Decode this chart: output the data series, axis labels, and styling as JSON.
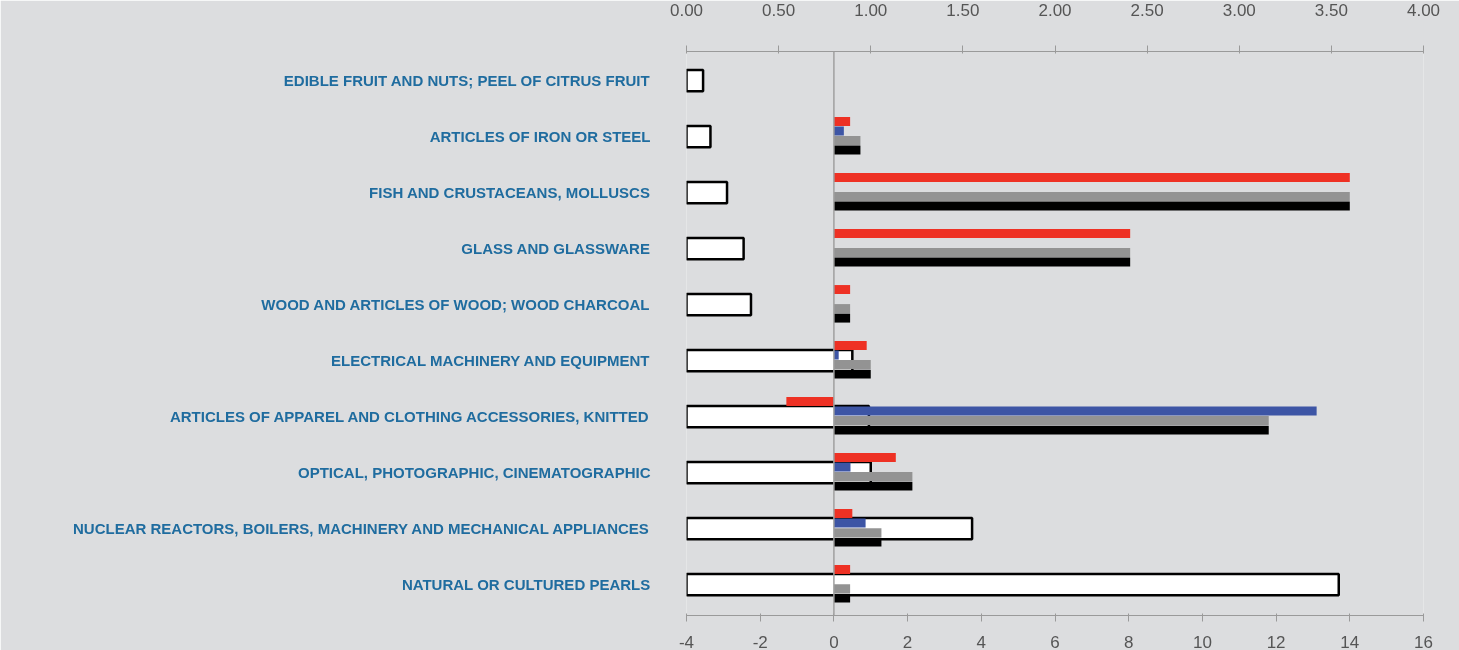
{
  "chart_data": {
    "type": "bar",
    "orientation": "horizontal",
    "categories": [
      "EDIBLE FRUIT AND NUTS; PEEL OF CITRUS FRUIT",
      "ARTICLES OF IRON OR STEEL",
      "FISH AND CRUSTACEANS, MOLLUSCS",
      "GLASS AND GLASSWARE",
      "WOOD AND ARTICLES OF WOOD; WOOD CHARCOAL",
      "ELECTRICAL MACHINERY AND EQUIPMENT",
      "ARTICLES OF APPAREL AND CLOTHING ACCESSORIES, KNITTED",
      "OPTICAL, PHOTOGRAPHIC, CINEMATOGRAPHIC",
      "NUCLEAR REACTORS, BOILERS, MACHINERY AND MECHANICAL APPLIANCES",
      "NATURAL OR CULTURED PEARLS"
    ],
    "series": [
      {
        "color": "#ffffff",
        "axis": "x2",
        "values": [
          0.09,
          0.13,
          0.22,
          0.31,
          0.35,
          0.9,
          0.99,
          1.0,
          1.55,
          3.54
        ]
      },
      {
        "color": "#ee3124",
        "values": [
          null,
          0.44,
          14.0,
          8.04,
          0.44,
          0.89,
          -1.29,
          1.68,
          0.5,
          0.44
        ]
      },
      {
        "color": "#3d55a5",
        "values": [
          null,
          0.27,
          null,
          null,
          null,
          0.13,
          13.1,
          0.45,
          0.86,
          null
        ]
      },
      {
        "color": "#939393",
        "values": [
          null,
          0.72,
          14.0,
          8.04,
          0.44,
          1.0,
          11.8,
          2.13,
          1.29,
          0.44
        ]
      },
      {
        "color": "#000000",
        "values": [
          null,
          0.72,
          14.0,
          8.04,
          0.44,
          1.0,
          11.8,
          2.13,
          1.29,
          0.44
        ]
      }
    ],
    "xlim": [
      -4,
      16
    ],
    "xticks": [
      -4,
      -2,
      0,
      2,
      4,
      6,
      8,
      10,
      12,
      14,
      16
    ],
    "x2lim": [
      0,
      4
    ],
    "x2ticks": [
      {
        "value": 0,
        "label": "0.00"
      },
      {
        "value": 0.5,
        "label": "0.50"
      },
      {
        "value": 1,
        "label": "1.00"
      },
      {
        "value": 1.5,
        "label": "1.50"
      },
      {
        "value": 2,
        "label": "2.00"
      },
      {
        "value": 2.5,
        "label": "2.50"
      },
      {
        "value": 3,
        "label": "3.00"
      },
      {
        "value": 3.5,
        "label": "3.50"
      },
      {
        "value": 4,
        "label": "4.00"
      }
    ],
    "ref_lines": [
      {
        "axis": "x",
        "value": 0,
        "color": "#a0a0a0"
      }
    ],
    "grid": false
  }
}
